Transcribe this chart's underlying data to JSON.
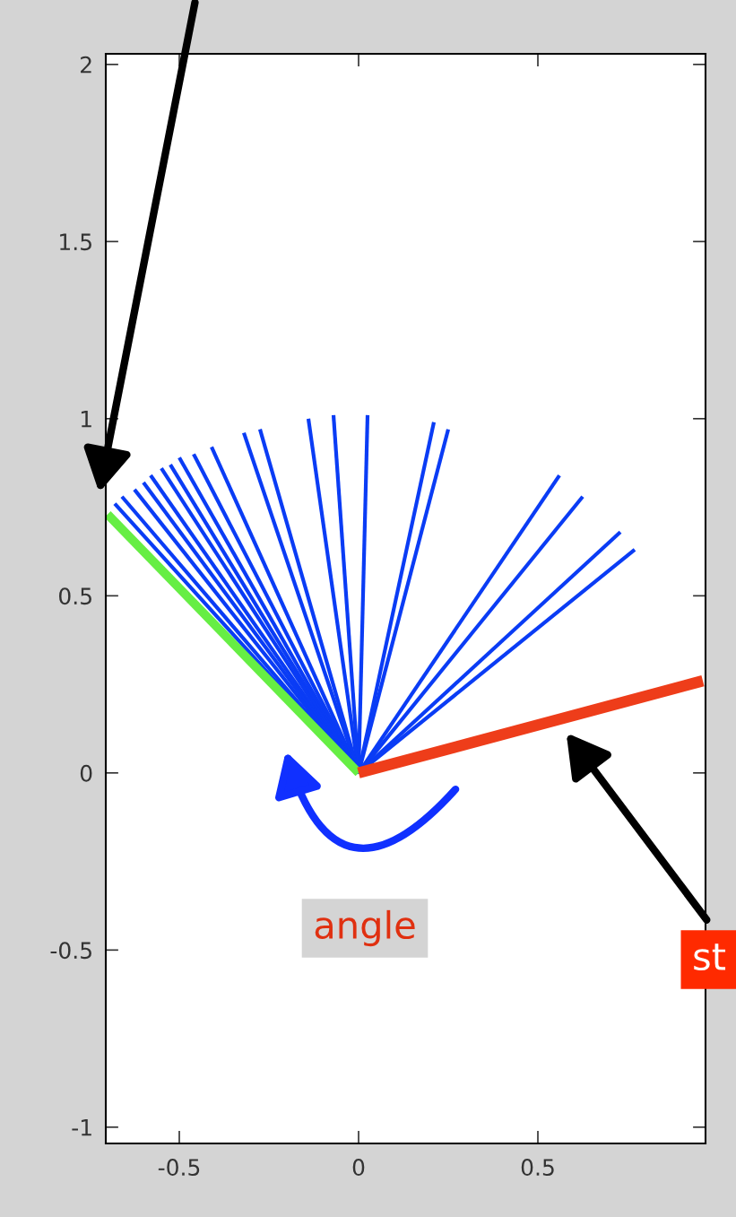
{
  "chart_data": {
    "type": "line",
    "xlim": [
      -0.705,
      0.9675
    ],
    "ylim": [
      -1.046,
      2.03
    ],
    "xticks": [
      -0.5,
      0,
      0.5
    ],
    "yticks": [
      -1,
      -0.5,
      0,
      0.5,
      1,
      1.5,
      2
    ],
    "grid": false,
    "marker": "none",
    "line_style": "solid",
    "annotations": [
      "angle",
      "st"
    ],
    "series": [
      {
        "color": "#0a3cf5",
        "x": [
          0,
          0.025
        ],
        "values": [
          0,
          1.01
        ]
      },
      {
        "color": "#0a3cf5",
        "x": [
          0,
          -0.07
        ],
        "values": [
          0,
          1.01
        ]
      },
      {
        "color": "#0a3cf5",
        "x": [
          0,
          -0.14
        ],
        "values": [
          0,
          1.0
        ]
      },
      {
        "color": "#0a3cf5",
        "x": [
          0,
          -0.275
        ],
        "values": [
          0,
          0.97
        ]
      },
      {
        "color": "#0a3cf5",
        "x": [
          0,
          -0.32
        ],
        "values": [
          0,
          0.96
        ]
      },
      {
        "color": "#0a3cf5",
        "x": [
          0,
          -0.41
        ],
        "values": [
          0,
          0.92
        ]
      },
      {
        "color": "#0a3cf5",
        "x": [
          0,
          -0.46
        ],
        "values": [
          0,
          0.9
        ]
      },
      {
        "color": "#0a3cf5",
        "x": [
          0,
          -0.5
        ],
        "values": [
          0,
          0.89
        ]
      },
      {
        "color": "#0a3cf5",
        "x": [
          0,
          -0.525
        ],
        "values": [
          0,
          0.87
        ]
      },
      {
        "color": "#0a3cf5",
        "x": [
          0,
          -0.55
        ],
        "values": [
          0,
          0.86
        ]
      },
      {
        "color": "#0a3cf5",
        "x": [
          0,
          -0.58
        ],
        "values": [
          0,
          0.84
        ]
      },
      {
        "color": "#0a3cf5",
        "x": [
          0,
          -0.6
        ],
        "values": [
          0,
          0.82
        ]
      },
      {
        "color": "#0a3cf5",
        "x": [
          0,
          -0.625
        ],
        "values": [
          0,
          0.8
        ]
      },
      {
        "color": "#0a3cf5",
        "x": [
          0,
          -0.66
        ],
        "values": [
          0,
          0.78
        ]
      },
      {
        "color": "#0a3cf5",
        "x": [
          0,
          -0.68
        ],
        "values": [
          0,
          0.76
        ]
      },
      {
        "color": "#0a3cf5",
        "x": [
          0,
          0.21
        ],
        "values": [
          0,
          0.99
        ]
      },
      {
        "color": "#0a3cf5",
        "x": [
          0,
          0.25
        ],
        "values": [
          0,
          0.97
        ]
      },
      {
        "color": "#0a3cf5",
        "x": [
          0,
          0.56
        ],
        "values": [
          0,
          0.84
        ]
      },
      {
        "color": "#0a3cf5",
        "x": [
          0,
          0.625
        ],
        "values": [
          0,
          0.78
        ]
      },
      {
        "color": "#0a3cf5",
        "x": [
          0,
          0.73
        ],
        "values": [
          0,
          0.68
        ]
      },
      {
        "color": "#0a3cf5",
        "x": [
          0,
          0.77
        ],
        "values": [
          0,
          0.63
        ]
      },
      {
        "color": "#66ee44",
        "x": [
          0,
          -0.7
        ],
        "values": [
          0,
          0.73
        ]
      },
      {
        "color": "#ee3d1a",
        "x": [
          0,
          0.96
        ],
        "values": [
          0,
          0.26
        ]
      }
    ]
  }
}
